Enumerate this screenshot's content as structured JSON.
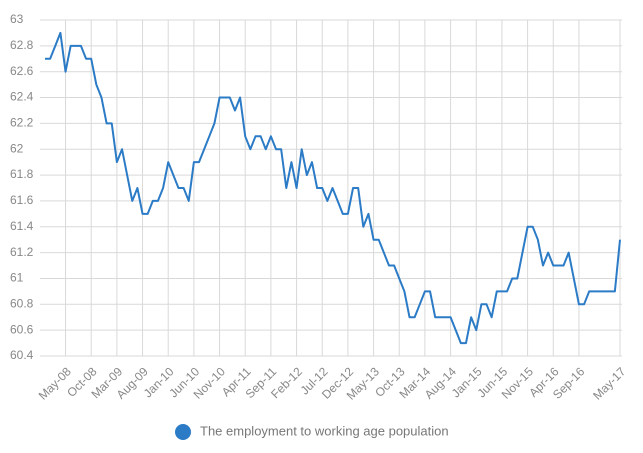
{
  "chart_data": {
    "type": "line",
    "categories": [
      null,
      null,
      null,
      null,
      "May-08",
      null,
      null,
      null,
      null,
      "Oct-08",
      null,
      null,
      null,
      null,
      "Mar-09",
      null,
      null,
      null,
      null,
      "Aug-09",
      null,
      null,
      null,
      null,
      "Jan-10",
      null,
      null,
      null,
      null,
      "Jun-10",
      null,
      null,
      null,
      null,
      "Nov-10",
      null,
      null,
      null,
      null,
      "Apr-11",
      null,
      null,
      null,
      null,
      "Sep-11",
      null,
      null,
      null,
      null,
      "Feb-12",
      null,
      null,
      null,
      null,
      "Jul-12",
      null,
      null,
      null,
      null,
      "Dec-12",
      null,
      null,
      null,
      null,
      "May-13",
      null,
      null,
      null,
      null,
      "Oct-13",
      null,
      null,
      null,
      null,
      "Mar-14",
      null,
      null,
      null,
      null,
      "Aug-14",
      null,
      null,
      null,
      null,
      "Jan-15",
      null,
      null,
      null,
      null,
      "Jun-15",
      null,
      null,
      null,
      null,
      "Nov-15",
      null,
      null,
      null,
      null,
      "Apr-16",
      null,
      null,
      null,
      null,
      "Sep-16",
      null,
      null,
      null,
      null,
      null,
      null,
      null,
      "May-17"
    ],
    "series": [
      {
        "name": "The employment to working age population",
        "color": "#2b7bc6",
        "values": [
          62.7,
          62.7,
          62.8,
          62.9,
          62.6,
          62.8,
          62.8,
          62.8,
          62.7,
          62.7,
          62.5,
          62.4,
          62.2,
          62.2,
          61.9,
          62.0,
          61.8,
          61.6,
          61.7,
          61.5,
          61.5,
          61.6,
          61.6,
          61.7,
          61.9,
          61.8,
          61.7,
          61.7,
          61.6,
          61.9,
          61.9,
          62.0,
          62.1,
          62.2,
          62.4,
          62.4,
          62.4,
          62.3,
          62.4,
          62.1,
          62.0,
          62.1,
          62.1,
          62.0,
          62.1,
          62.0,
          62.0,
          61.7,
          61.9,
          61.7,
          62.0,
          61.8,
          61.9,
          61.7,
          61.7,
          61.6,
          61.7,
          61.6,
          61.5,
          61.5,
          61.7,
          61.7,
          61.4,
          61.5,
          61.3,
          61.3,
          61.2,
          61.1,
          61.1,
          61.0,
          60.9,
          60.7,
          60.7,
          60.8,
          60.9,
          60.9,
          60.7,
          60.7,
          60.7,
          60.7,
          60.6,
          60.5,
          60.5,
          60.7,
          60.6,
          60.8,
          60.8,
          60.7,
          60.9,
          60.9,
          60.9,
          61.0,
          61.0,
          61.2,
          61.4,
          61.4,
          61.3,
          61.1,
          61.2,
          61.1,
          61.1,
          61.1,
          61.2,
          61.0,
          60.8,
          60.8,
          60.9,
          60.9,
          60.9,
          60.9,
          60.9,
          60.9,
          61.3
        ]
      }
    ],
    "ylim": [
      60.4,
      63
    ],
    "yticks": [
      60.4,
      60.6,
      60.8,
      61,
      61.2,
      61.4,
      61.6,
      61.8,
      62,
      62.2,
      62.4,
      62.6,
      62.8,
      63
    ],
    "grid": true,
    "legend": "bottom"
  }
}
